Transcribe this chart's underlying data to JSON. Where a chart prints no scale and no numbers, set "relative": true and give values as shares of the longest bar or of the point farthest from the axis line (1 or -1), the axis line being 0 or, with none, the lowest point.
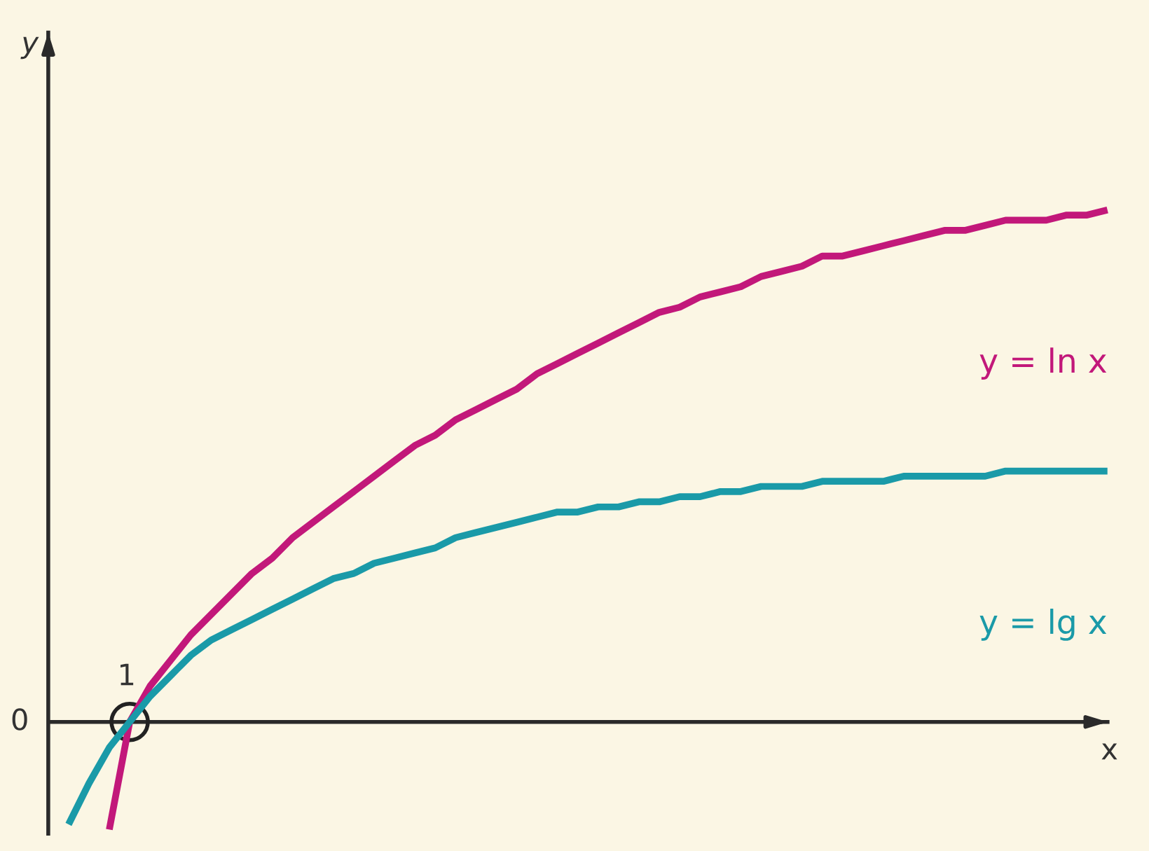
{
  "chart_data": {
    "type": "line",
    "relative": true,
    "xlabel": "x",
    "categories": [
      null,
      null,
      null,
      null,
      null,
      null,
      null,
      null,
      null,
      null,
      null,
      null,
      null,
      null,
      null,
      null,
      null,
      null,
      null,
      null,
      null,
      null,
      null,
      null,
      null,
      null,
      null,
      null,
      null,
      null,
      null,
      null,
      null,
      null,
      null,
      null,
      null,
      null,
      null,
      null,
      null,
      null,
      null,
      null,
      null,
      null,
      null,
      null,
      null,
      null,
      null,
      null
    ],
    "annotations": [
      "0",
      "1",
      "y"
    ],
    "marker": "none",
    "line_style": "solid",
    "series": [
      {
        "name": "y = ln x",
        "color": "#c2187a",
        "values": [
          null,
          null,
          -0.21,
          0,
          0.07,
          0.12,
          0.17,
          0.21,
          0.25,
          0.29,
          0.32,
          0.36,
          0.39,
          0.42,
          0.45,
          0.48,
          0.51,
          0.54,
          0.56,
          0.59,
          0.61,
          0.63,
          0.65,
          0.68,
          0.7,
          0.72,
          0.74,
          0.76,
          0.78,
          0.8,
          0.81,
          0.83,
          0.84,
          0.85,
          0.87,
          0.88,
          0.89,
          0.91,
          0.91,
          0.92,
          0.93,
          0.94,
          0.95,
          0.96,
          0.96,
          0.97,
          0.98,
          0.98,
          0.98,
          0.99,
          0.99,
          1.0
        ]
      },
      {
        "name": "y = lg x",
        "color": "#1a9aa8",
        "values": [
          -0.2,
          -0.12,
          -0.05,
          0,
          0.05,
          0.09,
          0.13,
          0.16,
          0.18,
          0.2,
          0.22,
          0.24,
          0.26,
          0.28,
          0.29,
          0.31,
          0.32,
          0.33,
          0.34,
          0.36,
          0.37,
          0.38,
          0.39,
          0.4,
          0.41,
          0.41,
          0.42,
          0.42,
          0.43,
          0.43,
          0.44,
          0.44,
          0.45,
          0.45,
          0.46,
          0.46,
          0.46,
          0.47,
          0.47,
          0.47,
          0.47,
          0.48,
          0.48,
          0.48,
          0.48,
          0.48,
          0.49,
          0.49,
          0.49,
          0.49,
          0.49,
          0.49
        ]
      }
    ]
  }
}
